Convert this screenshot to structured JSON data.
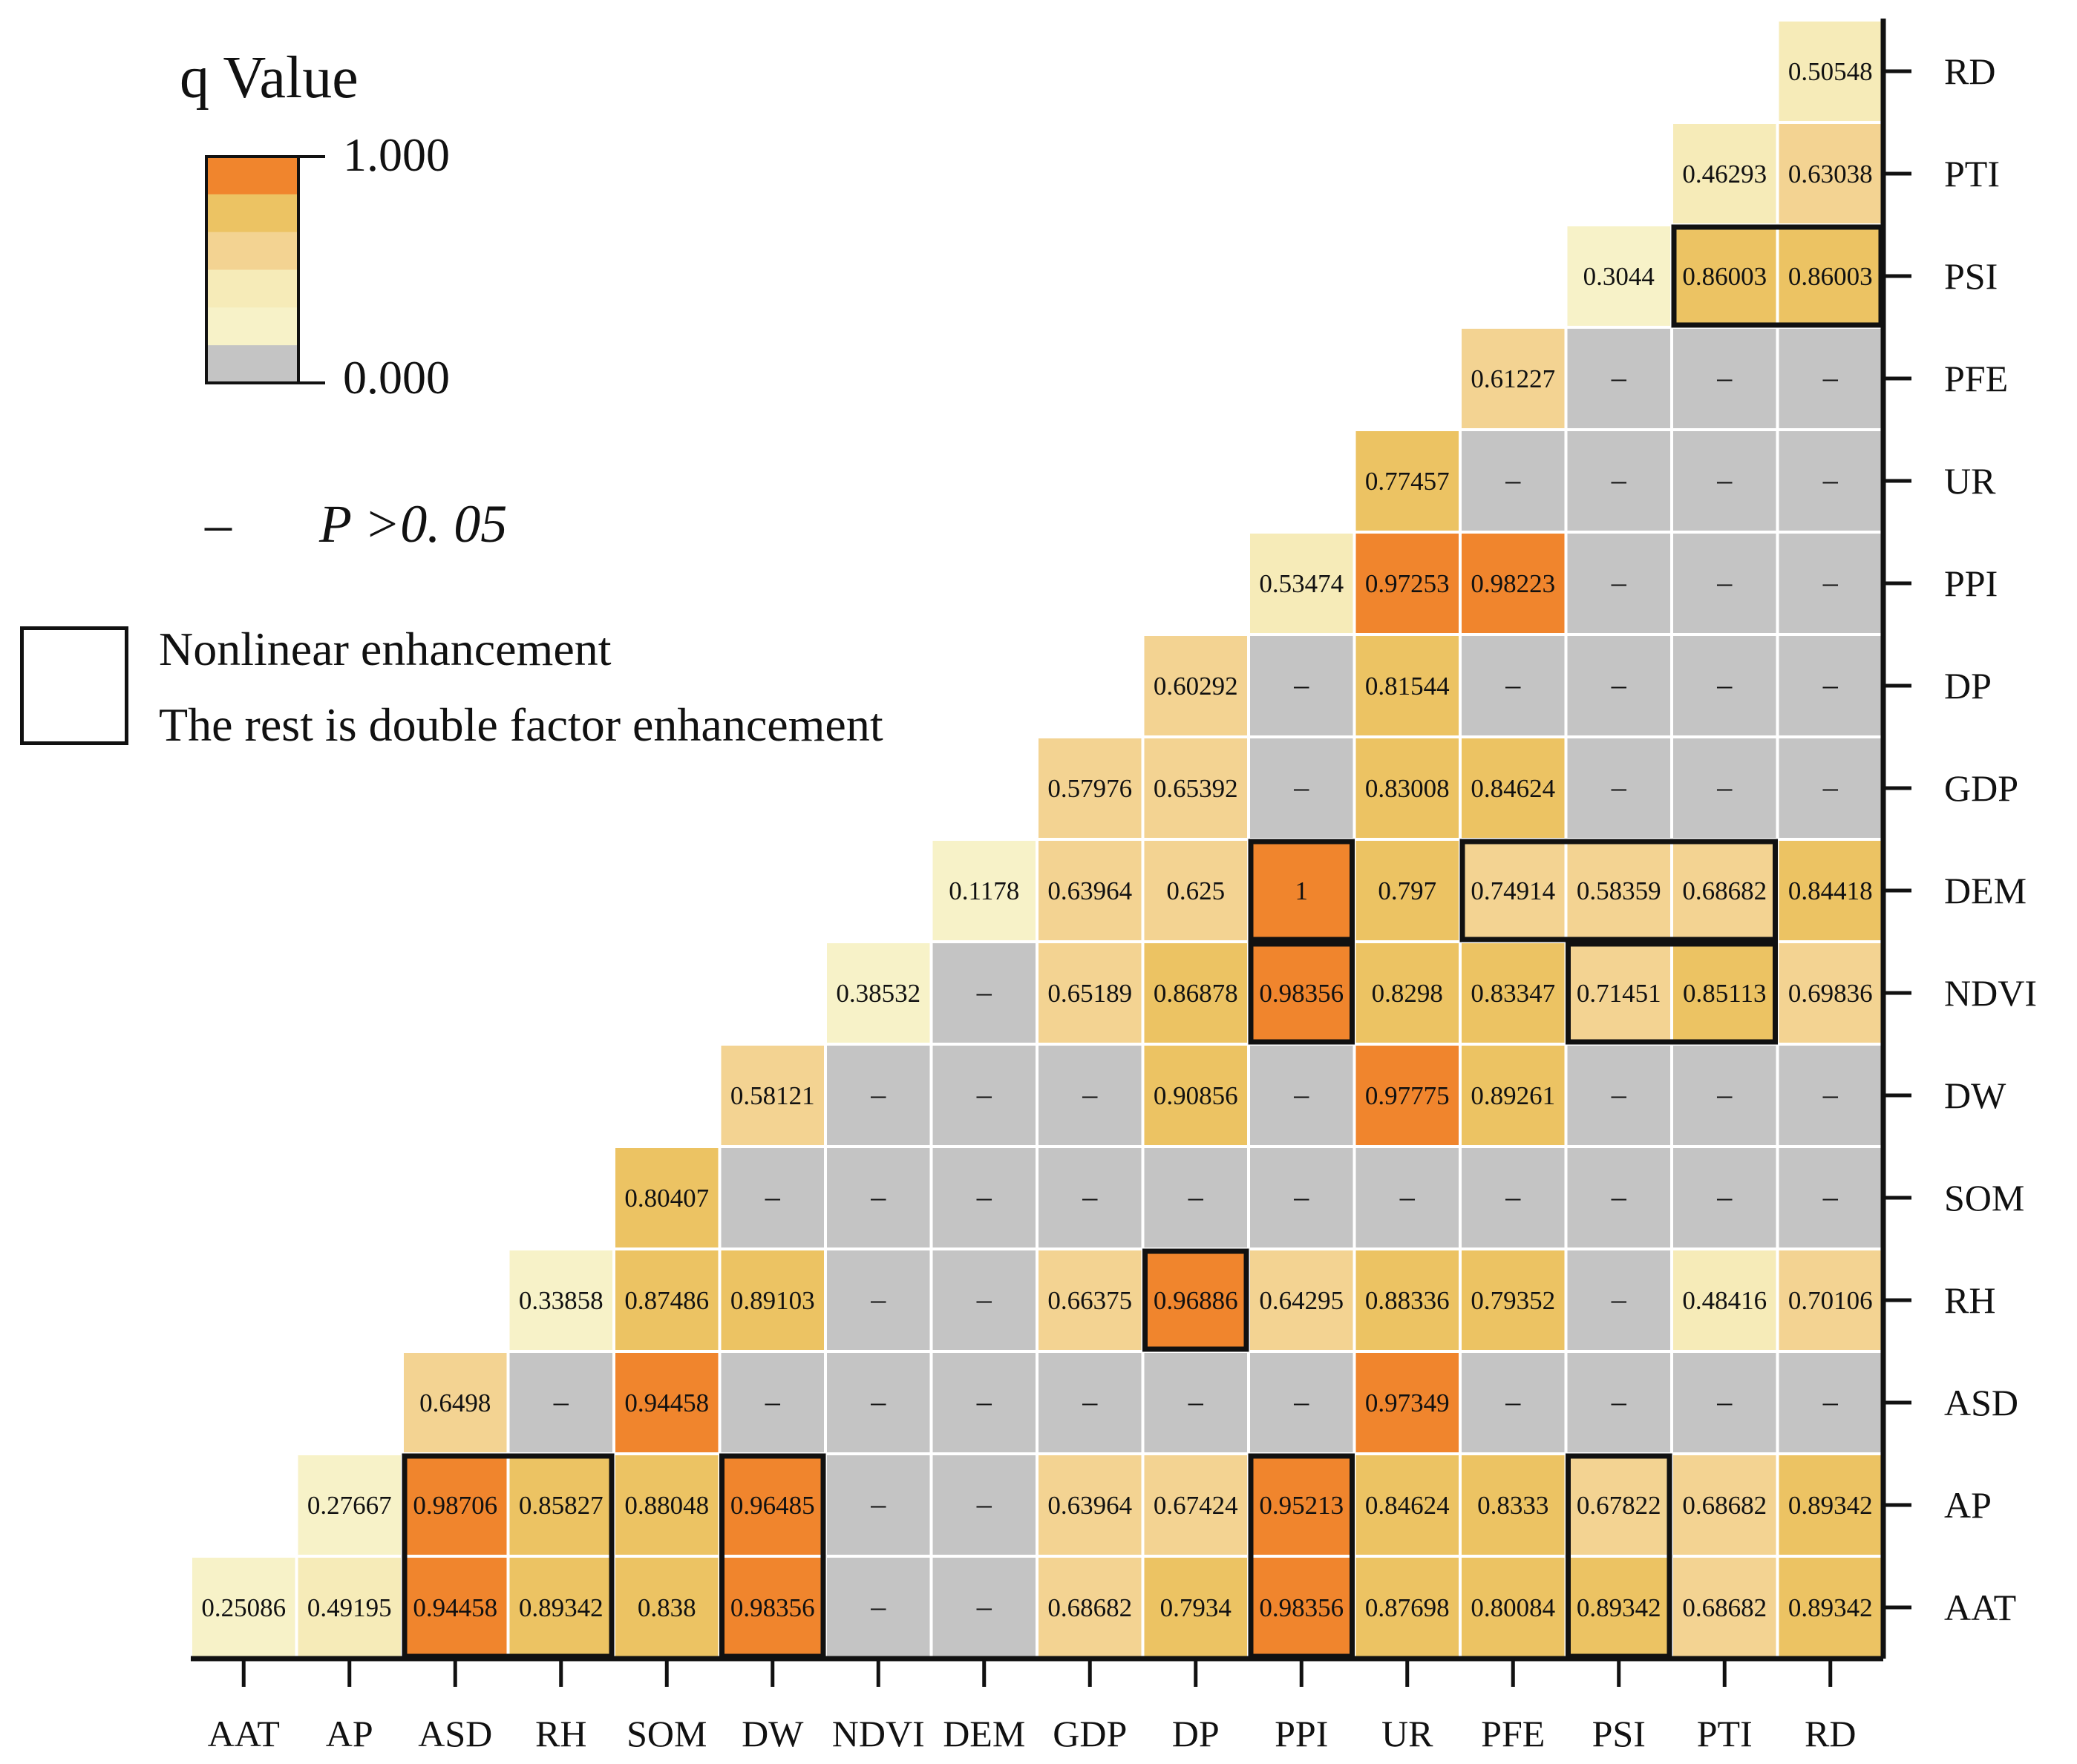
{
  "legend": {
    "title": "q Value",
    "max_label": "1.000",
    "min_label": "0.000",
    "colors": [
      "#f0852d",
      "#ecc363",
      "#f3d392",
      "#f6ebb8",
      "#f7f2c8",
      "#c4c4c4"
    ],
    "p_note_symbol": "–",
    "p_note_text": "P >0. 05",
    "box_label_1": "Nonlinear enhancement",
    "box_label_2": "The rest is double factor enhancement"
  },
  "chart_data": {
    "type": "heatmap",
    "title": "",
    "x_labels": [
      "AAT",
      "AP",
      "ASD",
      "RH",
      "SOM",
      "DW",
      "NDVI",
      "DEM",
      "GDP",
      "DP",
      "PPI",
      "UR",
      "PFE",
      "PSI",
      "PTI",
      "RD"
    ],
    "y_labels": [
      "AAT",
      "AP",
      "ASD",
      "RH",
      "SOM",
      "DW",
      "NDVI",
      "DEM",
      "GDP",
      "DP",
      "PPI",
      "UR",
      "PFE",
      "PSI",
      "PTI",
      "RD"
    ],
    "colorbar_range": [
      0,
      1
    ],
    "not_significant_text": "–",
    "rows": [
      [
        "0.25086",
        "0.49195",
        "0.94458",
        "0.89342",
        "0.838",
        "0.98356",
        "–",
        "–",
        "0.68682",
        "0.7934",
        "0.98356",
        "0.87698",
        "0.80084",
        "0.89342",
        "0.68682",
        "0.89342"
      ],
      [
        "",
        "0.27667",
        "0.98706",
        "0.85827",
        "0.88048",
        "0.96485",
        "–",
        "–",
        "0.63964",
        "0.67424",
        "0.95213",
        "0.84624",
        "0.8333",
        "0.67822",
        "0.68682",
        "0.89342"
      ],
      [
        "",
        "",
        "0.6498",
        "–",
        "0.94458",
        "–",
        "–",
        "–",
        "–",
        "–",
        "–",
        "0.97349",
        "–",
        "–",
        "–",
        "–"
      ],
      [
        "",
        "",
        "",
        "0.33858",
        "0.87486",
        "0.89103",
        "–",
        "–",
        "0.66375",
        "0.96886",
        "0.64295",
        "0.88336",
        "0.79352",
        "–",
        "0.48416",
        "0.70106"
      ],
      [
        "",
        "",
        "",
        "",
        "0.80407",
        "–",
        "–",
        "–",
        "–",
        "–",
        "–",
        "–",
        "–",
        "–",
        "–",
        "–"
      ],
      [
        "",
        "",
        "",
        "",
        "",
        "0.58121",
        "–",
        "–",
        "–",
        "0.90856",
        "–",
        "0.97775",
        "0.89261",
        "–",
        "–",
        "–"
      ],
      [
        "",
        "",
        "",
        "",
        "",
        "",
        "0.38532",
        "–",
        "0.65189",
        "0.86878",
        "0.98356",
        "0.8298",
        "0.83347",
        "0.71451",
        "0.85113",
        "0.69836"
      ],
      [
        "",
        "",
        "",
        "",
        "",
        "",
        "",
        "0.1178",
        "0.63964",
        "0.625",
        "1",
        "0.797",
        "0.74914",
        "0.58359",
        "0.68682",
        "0.84418"
      ],
      [
        "",
        "",
        "",
        "",
        "",
        "",
        "",
        "",
        "0.57976",
        "0.65392",
        "–",
        "0.83008",
        "0.84624",
        "–",
        "–",
        "–"
      ],
      [
        "",
        "",
        "",
        "",
        "",
        "",
        "",
        "",
        "",
        "0.60292",
        "–",
        "0.81544",
        "–",
        "–",
        "–",
        "–"
      ],
      [
        "",
        "",
        "",
        "",
        "",
        "",
        "",
        "",
        "",
        "",
        "0.53474",
        "0.97253",
        "0.98223",
        "–",
        "–",
        "–"
      ],
      [
        "",
        "",
        "",
        "",
        "",
        "",
        "",
        "",
        "",
        "",
        "",
        "0.77457",
        "–",
        "–",
        "–",
        "–"
      ],
      [
        "",
        "",
        "",
        "",
        "",
        "",
        "",
        "",
        "",
        "",
        "",
        "",
        "0.61227",
        "–",
        "–",
        "–"
      ],
      [
        "",
        "",
        "",
        "",
        "",
        "",
        "",
        "",
        "",
        "",
        "",
        "",
        "",
        "0.3044",
        "0.86003",
        "0.86003"
      ],
      [
        "",
        "",
        "",
        "",
        "",
        "",
        "",
        "",
        "",
        "",
        "",
        "",
        "",
        "",
        "0.46293",
        "0.63038"
      ],
      [
        "",
        "",
        "",
        "",
        "",
        "",
        "",
        "",
        "",
        "",
        "",
        "",
        "",
        "",
        "",
        "0.50548"
      ]
    ],
    "nonlinear_enhancement_groups": [
      {
        "row": "AAT",
        "from": "ASD",
        "to": "RH",
        "row_to": "AP"
      },
      {
        "row": "AAT",
        "from": "DW",
        "to": "DW",
        "row_to": "AP"
      },
      {
        "row": "AAT",
        "from": "PPI",
        "to": "PPI",
        "row_to": "AP"
      },
      {
        "row": "AAT",
        "from": "PSI",
        "to": "PSI",
        "row_to": "AP"
      },
      {
        "row": "RH",
        "from": "DP",
        "to": "DP",
        "row_to": "RH"
      },
      {
        "row": "NDVI",
        "from": "PPI",
        "to": "PPI",
        "row_to": "NDVI"
      },
      {
        "row": "NDVI",
        "from": "PSI",
        "to": "PTI",
        "row_to": "NDVI"
      },
      {
        "row": "DEM",
        "from": "PPI",
        "to": "PPI",
        "row_to": "DEM"
      },
      {
        "row": "DEM",
        "from": "PFE",
        "to": "PTI",
        "row_to": "DEM"
      },
      {
        "row": "PSI",
        "from": "PTI",
        "to": "RD",
        "row_to": "PSI"
      }
    ]
  }
}
